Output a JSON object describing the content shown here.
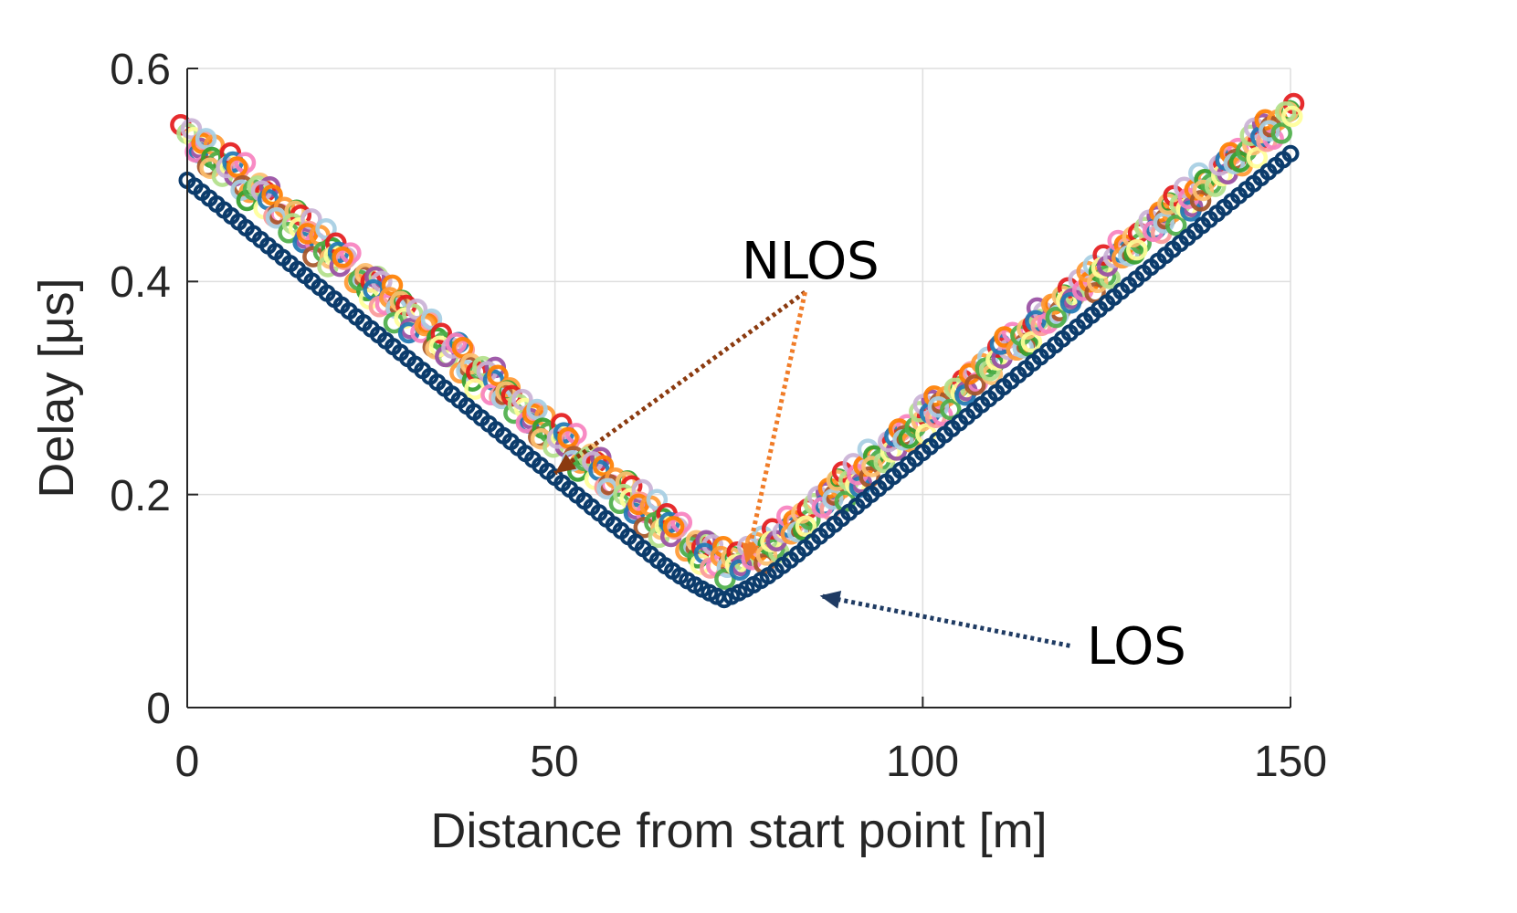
{
  "chart_data": {
    "type": "scatter",
    "title": "",
    "xlabel": "Distance from start point [m]",
    "ylabel": "Delay [μs]",
    "xlim": [
      0,
      150
    ],
    "ylim": [
      0,
      0.6
    ],
    "xticks": [
      0,
      50,
      100,
      150
    ],
    "yticks": [
      0,
      0.2,
      0.4,
      0.6
    ],
    "xtick_labels": [
      "0",
      "50",
      "100",
      "150"
    ],
    "ytick_labels": [
      "0",
      "0.2",
      "0.4",
      "0.6"
    ],
    "grid": true,
    "marker": "open circle",
    "los_series": {
      "name": "LOS",
      "color": "#0c3c6c",
      "start_distance": 0,
      "end_distance": 150,
      "spacing": 1,
      "min_distance": 73,
      "delay_start": 0.495,
      "delay_min": 0.088,
      "delay_end": 0.52
    },
    "nlos_series": {
      "name": "NLOS",
      "colors": [
        "#e41a1c",
        "#ff7f00",
        "#4daf4a",
        "#984ea3",
        "#a6cee3",
        "#b2df8a",
        "#fb9a99",
        "#fdbf6f",
        "#cab2d6",
        "#a65628",
        "#ffff99",
        "#f781bf",
        "#33a02c",
        "#1f78b4",
        "#ff9933"
      ],
      "start_distance": 0,
      "end_distance": 150,
      "spacing": 1,
      "min_distance": 74,
      "delay_start": 0.535,
      "delay_min": 0.117,
      "delay_end": 0.555
    },
    "annotations": [
      {
        "text": "NLOS",
        "arrows": [
          {
            "color": "#8b3a0f",
            "from": [
              84,
              0.39
            ],
            "to": [
              50,
              0.22
            ]
          },
          {
            "color": "#f07c28",
            "from": [
              84,
              0.39
            ],
            "to": [
              76,
              0.135
            ]
          }
        ],
        "label_at": [
          75.5,
          0.42
        ]
      },
      {
        "text": "LOS",
        "arrows": [
          {
            "color": "#1f3b63",
            "from": [
              120,
              0.058
            ],
            "to": [
              86,
              0.105
            ]
          }
        ],
        "label_at": [
          122,
          0.05
        ]
      }
    ]
  }
}
